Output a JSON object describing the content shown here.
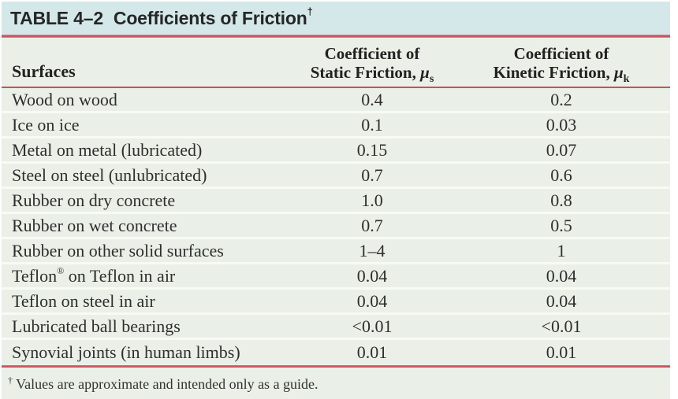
{
  "title": {
    "label": "TABLE 4–2",
    "text": "Coefficients of Friction",
    "superscript": "†"
  },
  "header": {
    "col1": "Surfaces",
    "col2": {
      "line1": "Coefficient of",
      "line2": "Static Friction,",
      "symbol": "μ",
      "subscript": "s"
    },
    "col3": {
      "line1": "Coefficient of",
      "line2": "Kinetic Friction,",
      "symbol": "μ",
      "subscript": "k"
    }
  },
  "table": {
    "rows": [
      {
        "surface": "Wood on wood",
        "static": "0.4",
        "kinetic": "0.2"
      },
      {
        "surface": "Ice on ice",
        "static": "0.1",
        "kinetic": "0.03"
      },
      {
        "surface": "Metal on metal (lubricated)",
        "static": "0.15",
        "kinetic": "0.07"
      },
      {
        "surface": "Steel on steel (unlubricated)",
        "static": "0.7",
        "kinetic": "0.6"
      },
      {
        "surface": "Rubber on dry concrete",
        "static": "1.0",
        "kinetic": "0.8"
      },
      {
        "surface": "Rubber on wet concrete",
        "static": "0.7",
        "kinetic": "0.5"
      },
      {
        "surface": "Rubber on other solid surfaces",
        "static": "1–4",
        "kinetic": "1"
      },
      {
        "surface": "Teflon® on Teflon in air",
        "static": "0.04",
        "kinetic": "0.04"
      },
      {
        "surface": "Teflon on steel in air",
        "static": "0.04",
        "kinetic": "0.04"
      },
      {
        "surface": "Lubricated ball bearings",
        "static": "<0.01",
        "kinetic": "<0.01"
      },
      {
        "surface": "Synovial joints (in human limbs)",
        "static": "0.01",
        "kinetic": "0.01"
      }
    ]
  },
  "footnote": "† Values are approximate and intended only as a guide.",
  "colors": {
    "title_bar_bg": "#d4e8e9",
    "body_bg": "#eaf0e7",
    "rule_red": "#c94f5a",
    "row_separator": "#f8faf4",
    "text": "#2e2e2e"
  }
}
